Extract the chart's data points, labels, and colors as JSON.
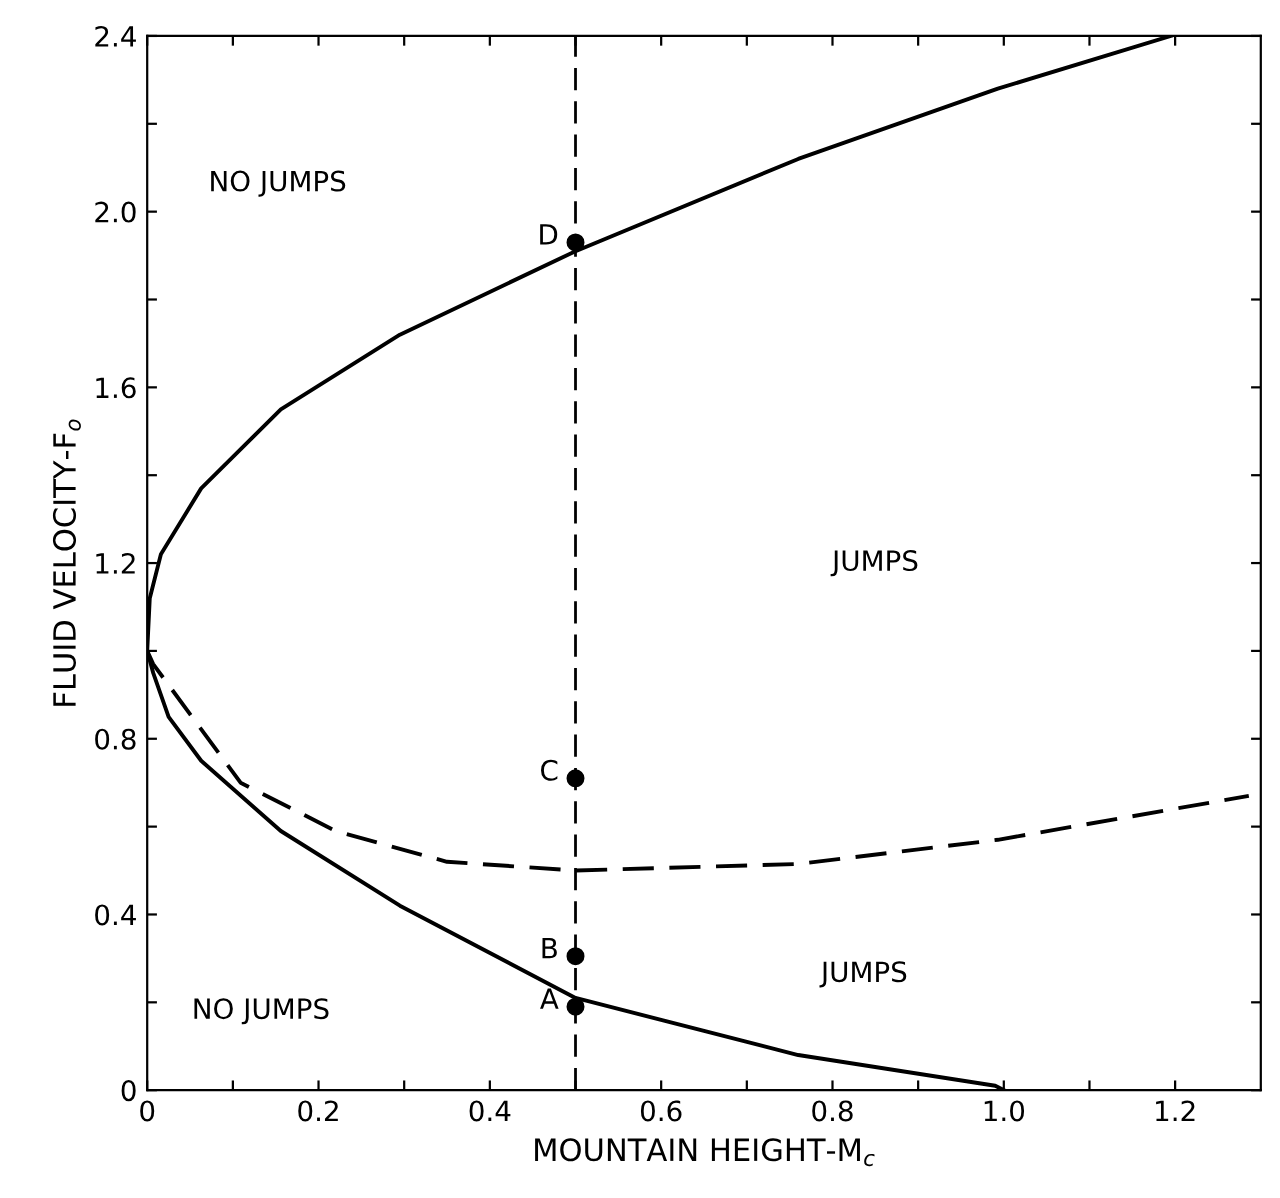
{
  "chart_data": {
    "type": "line",
    "xlabel": "MOUNTAIN HEIGHT-M$_{c}$",
    "ylabel": "FLUID VELOCITY-F$_{o}$",
    "xlim": [
      0,
      1.3
    ],
    "ylim": [
      0,
      2.4
    ],
    "xticks": [
      0,
      {
        "value": 0.1,
        "label": null
      },
      0.2,
      {
        "value": 0.3,
        "label": null
      },
      0.4,
      {
        "value": 0.5,
        "label": null
      },
      0.6,
      {
        "value": 0.7,
        "label": null
      },
      0.8,
      {
        "value": 0.9,
        "label": null
      },
      {
        "value": 1.0,
        "label": "1.0"
      },
      {
        "value": 1.1,
        "label": null
      },
      1.2
    ],
    "yticks": [
      0,
      {
        "value": 0.2,
        "label": null
      },
      0.4,
      {
        "value": 0.6,
        "label": null
      },
      0.8,
      {
        "value": 1.0,
        "label": null
      },
      1.2,
      {
        "value": 1.4,
        "label": null
      },
      1.6,
      {
        "value": 1.8,
        "label": null
      },
      {
        "value": 2.0,
        "label": "2.0"
      },
      {
        "value": 2.2,
        "label": null
      },
      2.4
    ],
    "grid": false,
    "series": [
      {
        "color": "#000000",
        "line_style": "solid",
        "marker": "none",
        "x": [
          1.195,
          0.993,
          0.76,
          0.5,
          0.295,
          0.156,
          0.063,
          0.016,
          0.003,
          0,
          0.007,
          0.025,
          0.063,
          0.156,
          0.295,
          0.5,
          0.76,
          0.99,
          1.0
        ],
        "values": [
          2.4,
          2.28,
          2.12,
          1.91,
          1.72,
          1.55,
          1.37,
          1.22,
          1.12,
          1.0,
          0.95,
          0.85,
          0.75,
          0.59,
          0.42,
          0.21,
          0.08,
          0.01,
          0
        ]
      },
      {
        "color": "#000000",
        "line_style": "dashed",
        "marker": "none",
        "x": [
          0,
          0.007,
          0.109,
          0.22,
          0.35,
          0.5,
          0.76,
          0.993,
          1.286
        ],
        "values": [
          1.0,
          0.97,
          0.7,
          0.59,
          0.52,
          0.5,
          0.515,
          0.57,
          0.67
        ]
      },
      {
        "type": "scatter",
        "color": "#000000",
        "marker": "circle",
        "x": [
          0.5,
          0.5,
          0.5,
          0.5
        ],
        "values": [
          0.19,
          0.305,
          0.71,
          1.93
        ]
      }
    ],
    "ref_lines": [
      {
        "axis": "x",
        "value": 0.5,
        "color": "#000000",
        "line_style": "dashed"
      }
    ],
    "annotations": [
      "A",
      "B",
      "C",
      "D",
      "NO JUMPS",
      "JUMPS",
      "JUMPS",
      "NO JUMPS"
    ]
  }
}
